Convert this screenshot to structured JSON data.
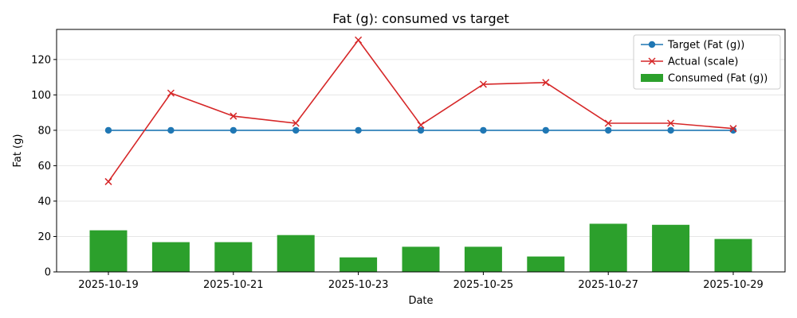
{
  "chart_data": {
    "type": "bar",
    "title": "Fat (g): consumed vs target",
    "xlabel": "Date",
    "ylabel": "Fat (g)",
    "ylim": [
      0,
      137
    ],
    "yticks": [
      0,
      20,
      40,
      60,
      80,
      100,
      120
    ],
    "categories": [
      "2025-10-19",
      "2025-10-20",
      "2025-10-21",
      "2025-10-22",
      "2025-10-23",
      "2025-10-24",
      "2025-10-25",
      "2025-10-26",
      "2025-10-27",
      "2025-10-28",
      "2025-10-29"
    ],
    "xtick_labels": [
      "2025-10-19",
      "2025-10-21",
      "2025-10-23",
      "2025-10-25",
      "2025-10-27",
      "2025-10-29"
    ],
    "grid": "horizontal",
    "legend_position": "top-right",
    "series": [
      {
        "name": "Target (Fat (g))",
        "kind": "line",
        "marker": "circle",
        "color": "#1f77b4",
        "values": [
          80,
          80,
          80,
          80,
          80,
          80,
          80,
          80,
          80,
          80,
          80
        ]
      },
      {
        "name": "Actual (scale)",
        "kind": "line",
        "marker": "x",
        "color": "#d62728",
        "values": [
          51,
          101,
          88,
          84,
          131,
          83,
          106,
          107,
          84,
          84,
          81
        ]
      },
      {
        "name": "Consumed (Fat (g))",
        "kind": "bar",
        "color": "#2ca02c",
        "values": [
          23.5,
          16.8,
          16.8,
          20.8,
          8.2,
          14.2,
          14.2,
          8.7,
          27.2,
          26.6,
          18.6
        ]
      }
    ]
  }
}
